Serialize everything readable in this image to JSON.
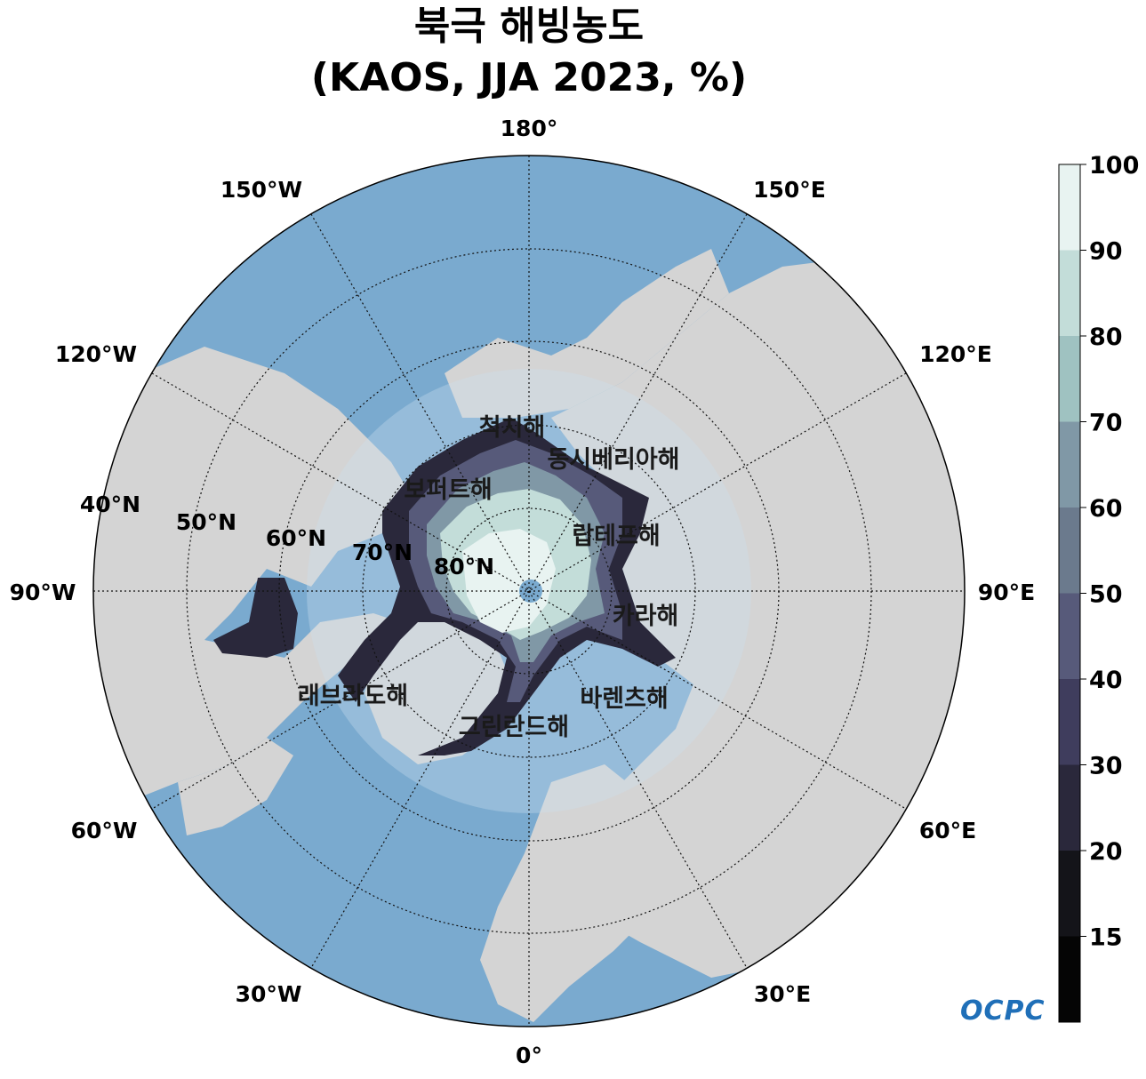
{
  "title": {
    "line1": "북극 해빙농도",
    "line2": "(KAOS, JJA 2023, %)"
  },
  "map": {
    "projection": "north-polar-stereographic",
    "longitude_labels": {
      "top": "180°",
      "upper_right_1": "150°E",
      "upper_right_2": "120°E",
      "right": "90°E",
      "lower_right_1": "60°E",
      "lower_right_2": "30°E",
      "bottom": "0°",
      "lower_left_1": "30°W",
      "lower_left_2": "60°W",
      "left": "90°W",
      "upper_left_1": "120°W",
      "upper_left_2": "150°W"
    },
    "latitude_labels": [
      "40°N",
      "50°N",
      "60°N",
      "70°N",
      "80°N"
    ],
    "sea_labels": {
      "chukchi": "척치해",
      "east_siberian": "동시베리아해",
      "beaufort": "보퍼트해",
      "laptev": "랍테프해",
      "kara": "카라해",
      "barents": "바렌츠해",
      "greenland": "그린란드해",
      "labrador": "래브라도해"
    },
    "colors": {
      "ocean": "#7aaacf",
      "land": "#d4d4d4"
    }
  },
  "colorbar": {
    "ticks": [
      "100",
      "90",
      "80",
      "70",
      "60",
      "50",
      "40",
      "30",
      "20",
      "15"
    ],
    "colors_top_to_bottom": [
      "#e8f3f1",
      "#c3ddd9",
      "#9fc2c1",
      "#8098a6",
      "#6b7a8d",
      "#575a7a",
      "#3f3d5d",
      "#2a283b",
      "#141419",
      "#050505"
    ]
  },
  "logo": {
    "text": "OCPC"
  }
}
